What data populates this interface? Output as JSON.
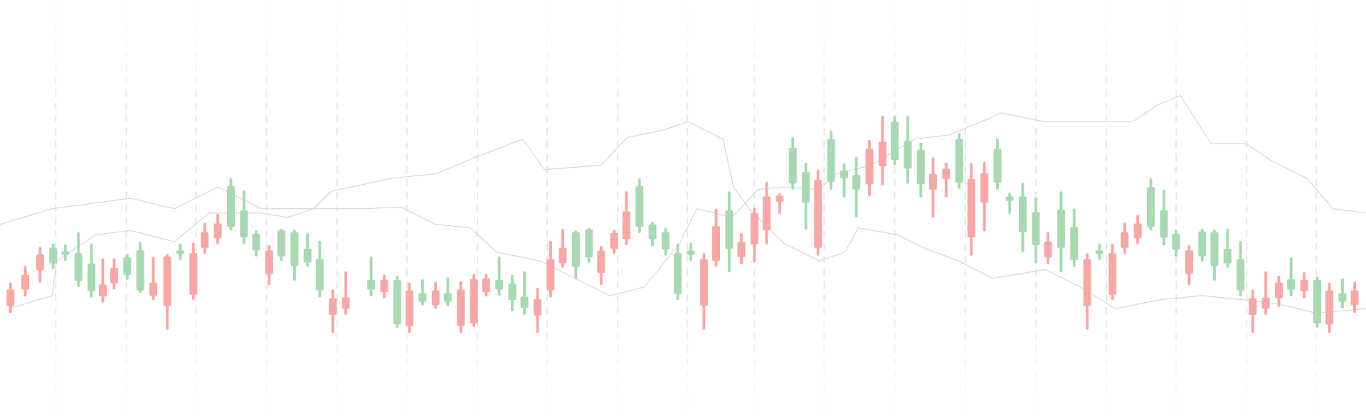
{
  "chart_data": {
    "type": "candlestick",
    "x": [
      12,
      29,
      46,
      61,
      75,
      90,
      105,
      118,
      131,
      146,
      161,
      176,
      192,
      207,
      222,
      235,
      250,
      265,
      280,
      294,
      309,
      323,
      338,
      353,
      367,
      382,
      397,
      426,
      441,
      456,
      470,
      485,
      500,
      514,
      529,
      544,
      558,
      573,
      588,
      602,
      617,
      632,
      646,
      661,
      676,
      690,
      705,
      719,
      734,
      749,
      764,
      778,
      793,
      808,
      822,
      837,
      851,
      866,
      880,
      895,
      910,
      925,
      939,
      954,
      969,
      983,
      998,
      1013,
      1027,
      1042,
      1057,
      1071,
      1086,
      1101,
      1115,
      1130,
      1145,
      1159,
      1174,
      1189,
      1203,
      1218,
      1233,
      1248,
      1262,
      1277,
      1291,
      1306,
      1321,
      1336,
      1350,
      1365,
      1380,
      1394,
      1409,
      1424,
      1438,
      1453,
      1468,
      1482,
      1497,
      1512,
      1526,
      1541,
      1555
    ],
    "open": [
      150,
      167,
      190,
      180,
      190,
      160,
      148,
      156,
      175,
      167,
      149,
      158,
      188,
      191,
      192,
      216,
      226,
      222,
      210,
      195,
      195,
      188,
      177,
      181,
      149,
      140,
      141,
      150,
      161,
      110,
      149,
      136,
      149,
      136,
      150,
      162,
      163,
      150,
      138,
      129,
      139,
      185,
      198,
      176,
      187,
      195,
      215,
      240,
      222,
      208,
      196,
      145,
      190,
      185,
      223,
      197,
      205,
      238,
      257,
      258,
      272,
      250,
      276,
      274,
      278,
      265,
      312,
      320,
      299,
      289,
      271,
      283,
      289,
      273,
      277,
      284,
      273,
      252,
      216,
      201,
      205,
      198,
      184,
      185,
      191,
      192,
      216,
      226,
      222,
      210,
      196,
      195,
      188,
      177,
      180,
      149,
      140,
      141,
      158,
      150,
      161,
      111,
      149,
      136,
      149
    ],
    "high": [
      158,
      177,
      199,
      203,
      202,
      216,
      203,
      186,
      186,
      191,
      205,
      188,
      191,
      203,
      204,
      227,
      237,
      278,
      264,
      218,
      201,
      220,
      219,
      215,
      206,
      150,
      171,
      188,
      167,
      166,
      158,
      162,
      159,
      164,
      160,
      168,
      168,
      188,
      167,
      171,
      152,
      206,
      220,
      218,
      221,
      200,
      219,
      263,
      278,
      228,
      221,
      203,
      204,
      192,
      243,
      263,
      215,
      244,
      274,
      261,
      325,
      296,
      288,
      333,
      295,
      303,
      322,
      350,
      350,
      350,
      319,
      302,
      296,
      330,
      296,
      297,
      324,
      261,
      273,
      256,
      216,
      263,
      243,
      192,
      203,
      203,
      227,
      236,
      278,
      265,
      219,
      201,
      220,
      219,
      220,
      206,
      150,
      171,
      166,
      187,
      170,
      165,
      158,
      163,
      159
    ],
    "low": [
      123,
      142,
      158,
      174,
      183,
      153,
      141,
      135,
      150,
      161,
      146,
      138,
      104,
      184,
      138,
      191,
      202,
      218,
      202,
      188,
      155,
      183,
      160,
      176,
      141,
      100,
      121,
      142,
      140,
      106,
      100,
      132,
      128,
      131,
      100,
      107,
      142,
      143,
      125,
      121,
      100,
      141,
      175,
      162,
      181,
      155,
      191,
      201,
      215,
      200,
      189,
      138,
      183,
      104,
      176,
      170,
      179,
      181,
      202,
      237,
      265,
      219,
      189,
      265,
      256,
      233,
      257,
      270,
      293,
      272,
      256,
      233,
      256,
      266,
      189,
      217,
      265,
      237,
      193,
      180,
      179,
      170,
      176,
      104,
      184,
      138,
      191,
      202,
      218,
      201,
      188,
      155,
      182,
      160,
      175,
      142,
      100,
      121,
      130,
      142,
      140,
      106,
      100,
      128,
      123
    ],
    "close": [
      131,
      150,
      172,
      198,
      194,
      192,
      180,
      142,
      157,
      187,
      195,
      143,
      131,
      195,
      144,
      198,
      209,
      269,
      241,
      214,
      168,
      218,
      216,
      197,
      185,
      121,
      128,
      161,
      147,
      161,
      108,
      146,
      132,
      146,
      108,
      111,
      147,
      161,
      157,
      142,
      120,
      149,
      180,
      216,
      219,
      169,
      197,
      208,
      269,
      225,
      216,
      192,
      195,
      131,
      183,
      241,
      187,
      202,
      218,
      251,
      313,
      285,
      198,
      323,
      287,
      282,
      271,
      292,
      343,
      321,
      311,
      265,
      277,
      323,
      210,
      250,
      312,
      257,
      257,
      239,
      187,
      242,
      222,
      131,
      195,
      144,
      198,
      209,
      268,
      241,
      214,
      168,
      217,
      216,
      197,
      185,
      121,
      128,
      140,
      162,
      148,
      161,
      110,
      146,
      132
    ],
    "up_color": "#a8d9b2",
    "down_color": "#f5a8a5",
    "lines": [
      {
        "color": "#d6d6d6",
        "x": [
          0,
          60,
          150,
          200,
          250,
          300,
          360,
          380,
          450,
          500,
          548,
          600,
          625,
          690,
          720,
          760,
          790,
          830,
          842,
          860,
          900,
          940,
          970,
          985,
          1030,
          1060,
          1100,
          1140,
          1200,
          1240,
          1280,
          1330,
          1380,
          1430,
          1470,
          1510,
          1568
        ],
        "values": [
          225,
          243,
          255,
          243,
          268,
          243,
          243,
          263,
          278,
          283,
          303,
          323,
          288,
          293,
          325,
          333,
          343,
          323,
          268,
          243,
          203,
          183,
          193,
          221,
          213,
          198,
          183,
          163,
          173,
          153,
          128,
          138,
          143,
          138,
          133,
          123,
          128
        ]
      },
      {
        "color": "#d6d6d6",
        "x": [
          10,
          60,
          65,
          110,
          150,
          200,
          240,
          300,
          330,
          360,
          420,
          460,
          500,
          540,
          570,
          620,
          660,
          700,
          740,
          780,
          800,
          840,
          870,
          900,
          940,
          960,
          1000,
          1050,
          1090,
          1150,
          1200,
          1250,
          1300,
          1330,
          1355,
          1390,
          1430,
          1460,
          1500,
          1530,
          1568
        ],
        "values": [
          128,
          143,
          183,
          213,
          218,
          205,
          238,
          238,
          233,
          243,
          243,
          245,
          225,
          221,
          193,
          183,
          163,
          143,
          153,
          203,
          243,
          233,
          265,
          268,
          265,
          283,
          293,
          323,
          328,
          353,
          343,
          343,
          343,
          363,
          373,
          318,
          318,
          298,
          278,
          243,
          238
        ]
      }
    ],
    "xlim": [
      0,
      1568
    ],
    "ylim": [
      0,
      483
    ],
    "xticks": [
      64,
      145,
      225,
      306,
      387,
      467,
      548,
      628,
      709,
      789,
      866,
      946,
      1027,
      1108,
      1189,
      1270,
      1350,
      1431,
      1511
    ],
    "grid": true
  }
}
